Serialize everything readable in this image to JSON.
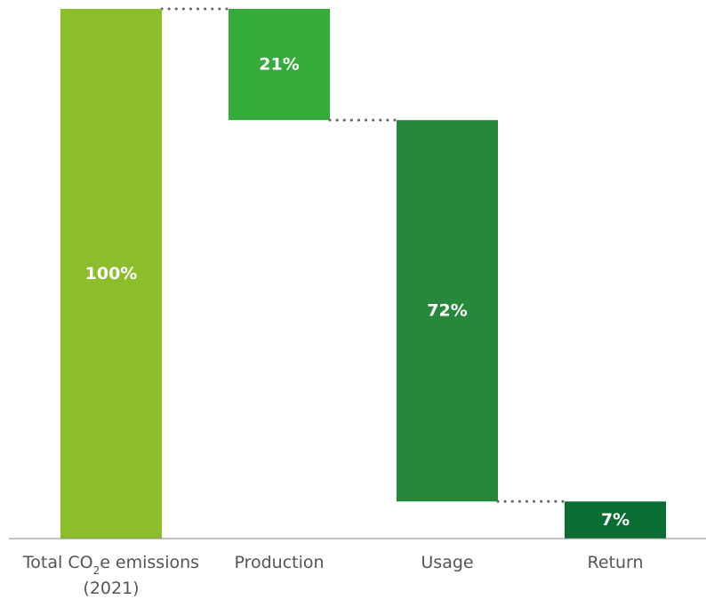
{
  "chart_data": {
    "type": "bar",
    "subtype": "waterfall",
    "categories": [
      [
        "Total CO",
        "2",
        "e emissions",
        "(2021)"
      ],
      "Production",
      "Usage",
      "Return"
    ],
    "category_display": [
      "Total CO2e emissions (2021)",
      "Production",
      "Usage",
      "Return"
    ],
    "values": [
      100,
      21,
      72,
      7
    ],
    "data_labels": [
      "100%",
      "21%",
      "72%",
      "7%"
    ],
    "colors": [
      "#8cbd2b",
      "#35ab3a",
      "#27873a",
      "#0a6e32"
    ],
    "connector_color": "#666666",
    "ylim": [
      0,
      100
    ],
    "grid": false,
    "legend": false,
    "title": "",
    "xlabel": "",
    "ylabel": ""
  }
}
